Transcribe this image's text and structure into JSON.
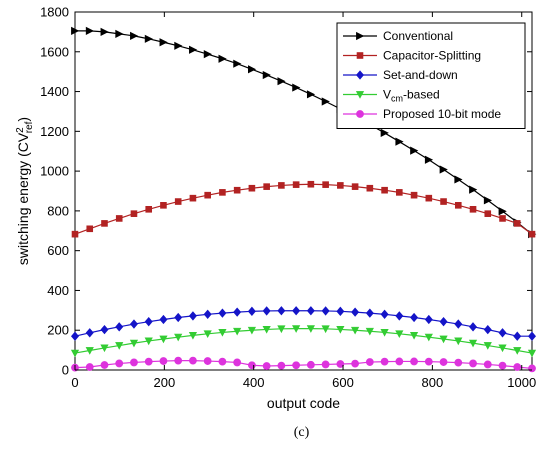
{
  "chart_data": {
    "type": "line",
    "caption": "(c)",
    "xlabel": "output code",
    "ylabel_parts": {
      "main": "switching energy (CV",
      "sup": "2",
      "sub": "ref",
      "close": ")"
    },
    "xlim": [
      0,
      1023
    ],
    "ylim": [
      0,
      1800
    ],
    "xticks": [
      0,
      200,
      400,
      600,
      800,
      1000
    ],
    "yticks": [
      0,
      200,
      400,
      600,
      800,
      1000,
      1200,
      1400,
      1600,
      1800
    ],
    "grid": false,
    "legend_position": "top-right",
    "x": [
      0,
      33,
      66,
      99,
      132,
      165,
      198,
      231,
      264,
      297,
      330,
      363,
      396,
      429,
      462,
      495,
      528,
      561,
      594,
      627,
      660,
      693,
      726,
      759,
      792,
      825,
      858,
      891,
      924,
      957,
      990,
      1023
    ],
    "series": [
      {
        "name": "Conventional",
        "color": "#000000",
        "marker": "triangle-right",
        "values": [
          1705,
          1705,
          1700,
          1690,
          1680,
          1665,
          1648,
          1630,
          1610,
          1588,
          1565,
          1540,
          1512,
          1483,
          1452,
          1420,
          1386,
          1350,
          1313,
          1275,
          1234,
          1192,
          1148,
          1103,
          1057,
          1008,
          958,
          907,
          853,
          798,
          742,
          683
        ]
      },
      {
        "name": "Capacitor-Splitting",
        "color": "#b22222",
        "marker": "square",
        "values": [
          683,
          710,
          737,
          762,
          786,
          808,
          828,
          847,
          864,
          879,
          893,
          904,
          914,
          922,
          928,
          932,
          934,
          932,
          928,
          922,
          914,
          904,
          893,
          879,
          864,
          847,
          828,
          808,
          786,
          762,
          737,
          683
        ]
      },
      {
        "name": "Set-and-down",
        "color": "#1414c8",
        "marker": "diamond",
        "values": [
          170,
          187,
          203,
          217,
          231,
          243,
          254,
          264,
          272,
          280,
          286,
          291,
          295,
          297,
          298,
          298,
          298,
          297,
          295,
          291,
          286,
          280,
          272,
          264,
          254,
          243,
          231,
          217,
          203,
          187,
          170,
          170
        ]
      },
      {
        "name_parts": {
          "main": "V",
          "sub": "cm",
          "rest": "-based"
        },
        "color": "#33cc33",
        "marker": "triangle-down",
        "values": [
          85,
          98,
          111,
          123,
          135,
          146,
          156,
          165,
          174,
          182,
          189,
          195,
          200,
          204,
          207,
          208,
          208,
          207,
          204,
          200,
          195,
          189,
          182,
          174,
          165,
          156,
          146,
          135,
          123,
          111,
          98,
          85
        ]
      },
      {
        "name": "Proposed 10-bit mode",
        "color": "#dd33dd",
        "marker": "circle",
        "values": [
          12,
          15,
          25,
          33,
          38,
          42,
          45,
          47,
          47,
          45,
          42,
          38,
          24,
          20,
          22,
          24,
          26,
          28,
          30,
          32,
          40,
          42,
          43,
          43,
          42,
          40,
          37,
          33,
          28,
          22,
          15,
          8
        ]
      }
    ]
  }
}
